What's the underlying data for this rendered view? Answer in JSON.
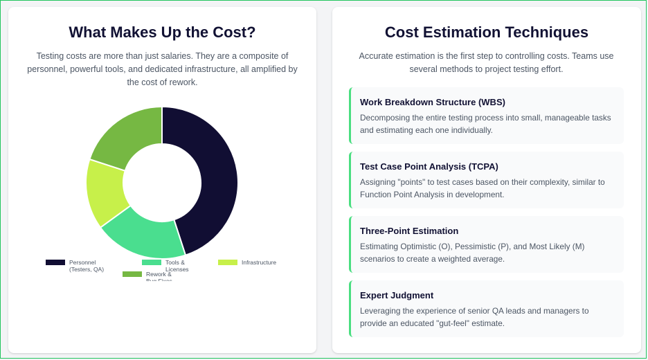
{
  "cost_section": {
    "title": "What Makes Up the Cost?",
    "description": "Testing costs are more than just salaries. They are a composite of personnel, powerful tools, and dedicated infrastructure, all amplified by the cost of rework."
  },
  "chart_data": {
    "type": "pie",
    "categories": [
      "Personnel (Testers, QA)",
      "Tools & Licenses",
      "Infrastructure",
      "Rework & Bug Fixes"
    ],
    "values": [
      45,
      20,
      15,
      20
    ],
    "colors": [
      "#110e33",
      "#4ade8f",
      "#c7f04a",
      "#76b843"
    ],
    "legend": [
      "Personnel (Testers, QA)",
      "Tools & Licenses",
      "Infrastructure",
      "Rework & Bug Fixes"
    ]
  },
  "techniques_section": {
    "title": "Cost Estimation Techniques",
    "description": "Accurate estimation is the first step to controlling costs. Teams use several methods to project testing effort.",
    "items": [
      {
        "title": "Work Breakdown Structure (WBS)",
        "description": "Decomposing the entire testing process into small, manageable tasks and estimating each one individually."
      },
      {
        "title": "Test Case Point Analysis (TCPA)",
        "description": "Assigning \"points\" to test cases based on their complexity, similar to Function Point Analysis in development."
      },
      {
        "title": "Three-Point Estimation",
        "description": "Estimating Optimistic (O), Pessimistic (P), and Most Likely (M) scenarios to create a weighted average."
      },
      {
        "title": "Expert Judgment",
        "description": "Leveraging the experience of senior QA leads and managers to provide an educated \"gut-feel\" estimate."
      }
    ]
  }
}
